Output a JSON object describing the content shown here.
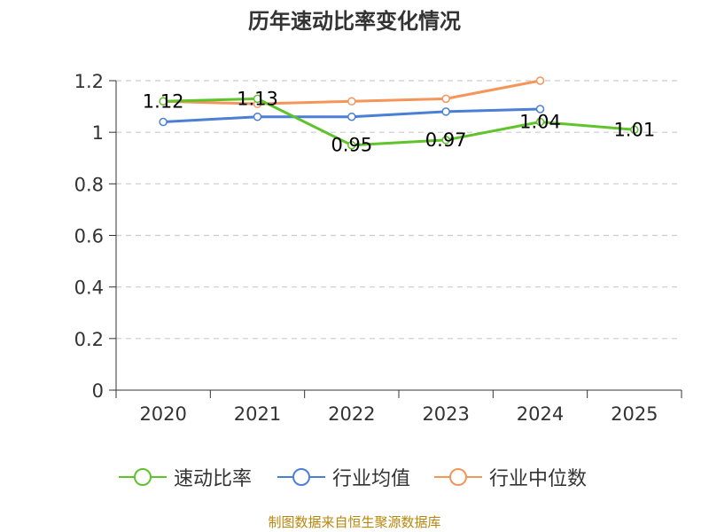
{
  "chart_data": {
    "type": "line",
    "title": "历年速动比率变化情况",
    "categories": [
      "2020",
      "2021",
      "2022",
      "2023",
      "2024",
      "2025"
    ],
    "yticks": [
      "0",
      "0.2",
      "0.4",
      "0.6",
      "0.8",
      "1",
      "1.2"
    ],
    "ylim": [
      0,
      1.2
    ],
    "grid": true,
    "legend_position": "bottom",
    "series": [
      {
        "name": "速动比率",
        "color": "#5fc32c",
        "values": [
          1.12,
          1.13,
          0.95,
          0.97,
          1.04,
          1.01
        ],
        "labels": [
          "1.12",
          "1.13",
          "0.95",
          "0.97",
          "1.04",
          "1.01"
        ]
      },
      {
        "name": "行业均值",
        "color": "#4a7fd6",
        "values": [
          1.04,
          1.06,
          1.06,
          1.08,
          1.09,
          null
        ]
      },
      {
        "name": "行业中位数",
        "color": "#f5955a",
        "values": [
          1.12,
          1.11,
          1.12,
          1.13,
          1.2,
          null
        ]
      }
    ]
  },
  "source": "制图数据来自恒生聚源数据库"
}
